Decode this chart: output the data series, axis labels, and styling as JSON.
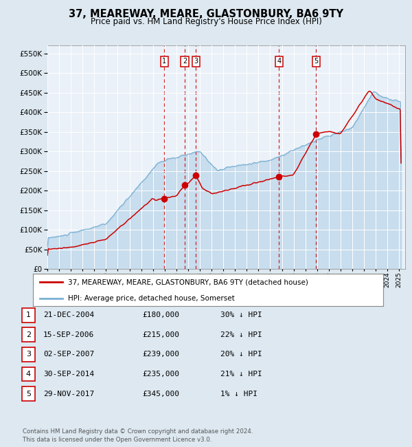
{
  "title": "37, MEAREWAY, MEARE, GLASTONBURY, BA6 9TY",
  "subtitle": "Price paid vs. HM Land Registry's House Price Index (HPI)",
  "legend_line1": "37, MEAREWAY, MEARE, GLASTONBURY, BA6 9TY (detached house)",
  "legend_line2": "HPI: Average price, detached house, Somerset",
  "footer1": "Contains HM Land Registry data © Crown copyright and database right 2024.",
  "footer2": "This data is licensed under the Open Government Licence v3.0.",
  "transactions": [
    {
      "num": 1,
      "date": "21-DEC-2004",
      "price": 180000,
      "pct": "30%",
      "year": 2004.97
    },
    {
      "num": 2,
      "date": "15-SEP-2006",
      "price": 215000,
      "pct": "22%",
      "year": 2006.71
    },
    {
      "num": 3,
      "date": "02-SEP-2007",
      "price": 239000,
      "pct": "20%",
      "year": 2007.67
    },
    {
      "num": 4,
      "date": "30-SEP-2014",
      "price": 235000,
      "pct": "21%",
      "year": 2014.75
    },
    {
      "num": 5,
      "date": "29-NOV-2017",
      "price": 345000,
      "pct": "1%",
      "year": 2017.91
    }
  ],
  "hpi_color": "#7ab0d4",
  "price_color": "#cc0000",
  "bg_color": "#dde8f0",
  "plot_bg": "#eaf1f8",
  "grid_color": "#ffffff",
  "vline_color": "#cc0000",
  "marker_color": "#cc0000",
  "xmin": 1995,
  "xmax": 2025.5,
  "ymin": 0,
  "ymax": 570000
}
